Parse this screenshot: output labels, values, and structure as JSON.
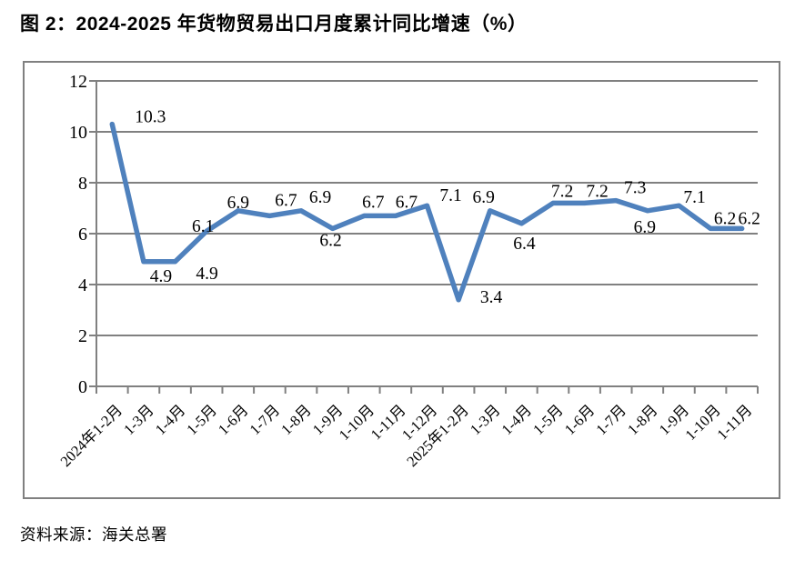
{
  "page": {
    "title": "图 2：2024-2025 年货物贸易出口月度累计同比增速（%）",
    "source": "资料来源：海关总署"
  },
  "chart_data": {
    "type": "line",
    "title": "图 2：2024-2025 年货物贸易出口月度累计同比增速（%）",
    "categories": [
      "2024年1-2月",
      "1-3月",
      "1-4月",
      "1-5月",
      "1-6月",
      "1-7月",
      "1-8月",
      "1-9月",
      "1-10月",
      "1-11月",
      "1-12月",
      "2025年1-2月",
      "1-3月",
      "1-4月",
      "1-5月",
      "1-6月",
      "1-7月",
      "1-8月",
      "1-9月",
      "1-10月",
      "1-11月"
    ],
    "values": [
      10.3,
      4.9,
      4.9,
      6.1,
      6.9,
      6.7,
      6.9,
      6.2,
      6.7,
      6.7,
      7.1,
      3.4,
      6.9,
      6.4,
      7.2,
      7.2,
      7.3,
      6.9,
      7.1,
      6.2,
      6.2
    ],
    "data_labels": [
      "10.3",
      "4.9",
      "4.9",
      "6.1",
      "6.9",
      "6.7",
      "6.9",
      "6.2",
      "6.7",
      "6.7",
      "7.1",
      "3.4",
      "6.9",
      "6.4",
      "7.2",
      "7.2",
      "7.3",
      "6.9",
      "7.1",
      "6.2",
      "6.2"
    ],
    "xlabel": "",
    "ylabel": "",
    "ylim": [
      0,
      12
    ],
    "yticks": [
      0,
      2,
      4,
      6,
      8,
      10,
      12
    ],
    "grid": true,
    "legend": "none",
    "line_color": "#4f81bd",
    "grid_color": "#808080",
    "axis_text_color": "#000000"
  }
}
